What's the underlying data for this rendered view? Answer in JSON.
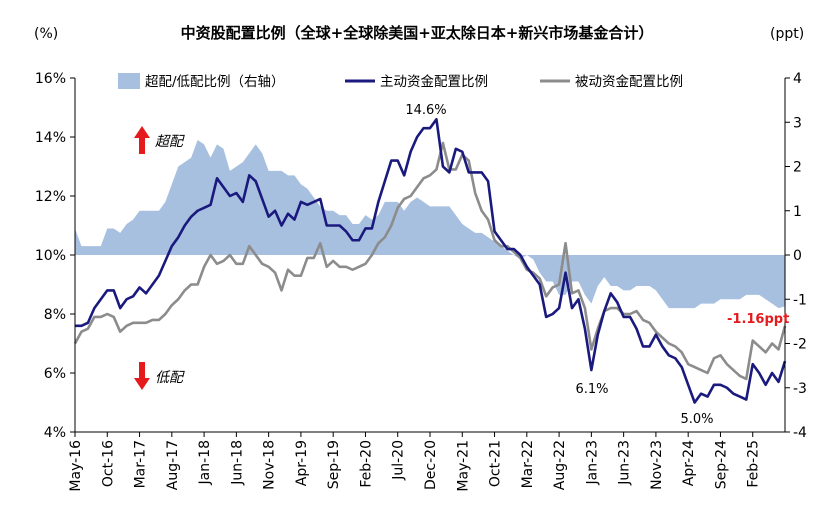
{
  "chart_data": {
    "type": "line",
    "title": "中资股配置比例（全球+全球除美国+亚太除日本+新兴市场基金合计）",
    "ylabel_left": "(%)",
    "ylabel_right": "(ppt)",
    "ylim_left": [
      4,
      16
    ],
    "yticks_left": [
      "16%",
      "14%",
      "12%",
      "10%",
      "8%",
      "6%",
      "4%"
    ],
    "ylim_right": [
      -4,
      4
    ],
    "yticks_right": [
      "4",
      "3",
      "2",
      "1",
      "0",
      "-1",
      "-2",
      "-3",
      "-4"
    ],
    "x_tick_labels": [
      "May-16",
      "Oct-16",
      "Mar-17",
      "Aug-17",
      "Jan-18",
      "Jun-18",
      "Nov-18",
      "Apr-19",
      "Sep-19",
      "Feb-20",
      "Jul-20",
      "Dec-20",
      "May-21",
      "Oct-21",
      "Mar-22",
      "Aug-22",
      "Jan-23",
      "Jun-23",
      "Nov-23",
      "Apr-24",
      "Sep-24",
      "Feb-25"
    ],
    "legend": [
      "超配/低配比例（右轴）",
      "主动资金配置比例",
      "被动资金配置比例"
    ],
    "series": [
      {
        "name": "主动资金配置比例",
        "values": [
          7.6,
          7.6,
          7.7,
          8.2,
          8.5,
          8.8,
          8.8,
          8.2,
          8.5,
          8.6,
          8.9,
          8.7,
          9.0,
          9.3,
          9.8,
          10.3,
          10.6,
          11.0,
          11.3,
          11.5,
          11.6,
          11.7,
          12.6,
          12.3,
          12.0,
          12.1,
          11.8,
          12.7,
          12.5,
          11.9,
          11.3,
          11.5,
          11.0,
          11.4,
          11.2,
          11.8,
          11.7,
          11.8,
          11.9,
          11.0,
          11.0,
          11.0,
          10.8,
          10.5,
          10.5,
          10.9,
          10.9,
          11.8,
          12.5,
          13.2,
          13.2,
          12.7,
          13.5,
          14.0,
          14.3,
          14.3,
          14.6,
          13.0,
          12.8,
          13.6,
          13.5,
          12.8,
          12.8,
          12.8,
          12.5,
          10.8,
          10.5,
          10.2,
          10.2,
          10.0,
          9.6,
          9.3,
          9.0,
          7.9,
          8.0,
          8.2,
          9.4,
          8.2,
          8.5,
          7.5,
          6.1,
          7.3,
          8.1,
          8.7,
          8.4,
          7.9,
          7.9,
          7.5,
          6.9,
          6.9,
          7.3,
          6.9,
          6.6,
          6.5,
          6.2,
          5.6,
          5.0,
          5.3,
          5.2,
          5.6,
          5.6,
          5.5,
          5.3,
          5.2,
          5.1,
          6.3,
          6.0,
          5.6,
          6.0,
          5.7,
          6.4
        ]
      },
      {
        "name": "被动资金配置比例",
        "values": [
          7.0,
          7.4,
          7.5,
          7.9,
          7.9,
          8.0,
          7.9,
          7.4,
          7.6,
          7.7,
          7.7,
          7.7,
          7.8,
          7.8,
          8.0,
          8.3,
          8.5,
          8.8,
          9.0,
          9.0,
          9.6,
          10.0,
          9.7,
          9.8,
          10.0,
          9.7,
          9.7,
          10.3,
          10.0,
          9.7,
          9.6,
          9.4,
          8.8,
          9.5,
          9.3,
          9.3,
          9.9,
          9.9,
          10.4,
          9.6,
          9.8,
          9.6,
          9.6,
          9.5,
          9.6,
          9.7,
          10.0,
          10.4,
          10.6,
          11.0,
          11.6,
          11.9,
          12.0,
          12.3,
          12.6,
          12.7,
          12.9,
          13.8,
          12.9,
          12.9,
          13.4,
          13.2,
          12.1,
          11.5,
          11.2,
          10.5,
          10.3,
          10.3,
          10.1,
          9.9,
          9.5,
          9.4,
          9.2,
          8.6,
          8.9,
          9.0,
          10.4,
          8.7,
          8.8,
          8.2,
          6.8,
          7.5,
          8.1,
          8.2,
          8.2,
          8.0,
          8.0,
          8.1,
          7.8,
          7.7,
          7.4,
          7.2,
          7.0,
          6.9,
          6.7,
          6.3,
          6.2,
          6.1,
          6.0,
          6.5,
          6.6,
          6.3,
          6.1,
          5.9,
          5.8,
          7.1,
          6.9,
          6.7,
          7.0,
          6.8,
          7.6
        ]
      },
      {
        "name": "超配/低配比例（右轴）",
        "axis": "right",
        "values": [
          0.6,
          0.2,
          0.2,
          0.2,
          0.2,
          0.6,
          0.6,
          0.5,
          0.7,
          0.8,
          1.0,
          1.0,
          1.0,
          1.0,
          1.2,
          1.6,
          2.0,
          2.1,
          2.2,
          2.6,
          2.5,
          2.2,
          2.5,
          2.4,
          1.9,
          2.0,
          2.1,
          2.3,
          2.5,
          2.3,
          1.9,
          1.9,
          1.9,
          1.8,
          1.8,
          1.6,
          1.5,
          1.3,
          1.1,
          1.0,
          1.0,
          0.9,
          0.9,
          0.7,
          0.7,
          0.9,
          0.8,
          0.9,
          1.2,
          1.2,
          1.2,
          1.0,
          1.2,
          1.3,
          1.2,
          1.1,
          1.1,
          1.1,
          1.1,
          0.9,
          0.7,
          0.6,
          0.5,
          0.5,
          0.4,
          0.3,
          0.2,
          0.1,
          0.0,
          -0.1,
          0.0,
          -0.1,
          -0.4,
          -0.6,
          -0.6,
          -0.9,
          -0.9,
          -0.6,
          -0.6,
          -0.9,
          -1.1,
          -0.7,
          -0.5,
          -0.7,
          -0.7,
          -0.8,
          -0.8,
          -0.7,
          -0.7,
          -0.7,
          -0.8,
          -1.0,
          -1.2,
          -1.2,
          -1.2,
          -1.2,
          -1.2,
          -1.1,
          -1.1,
          -1.1,
          -1.0,
          -1.0,
          -1.0,
          -1.0,
          -0.9,
          -0.9,
          -0.9,
          -1.0,
          -1.1,
          -1.2,
          -1.16
        ]
      }
    ],
    "annotations": {
      "peak_label": "14.6%",
      "mid_low_label": "6.1%",
      "low_label": "5.0%",
      "latest_label": "-1.16ppt",
      "over_label": "超配",
      "under_label": "低配"
    },
    "colors": {
      "active": "#1a1a7e",
      "passive": "#8c8c8c",
      "area": "#a8c0e0",
      "arrow": "#e41a1c",
      "annotation_red": "#e41a1c"
    }
  }
}
